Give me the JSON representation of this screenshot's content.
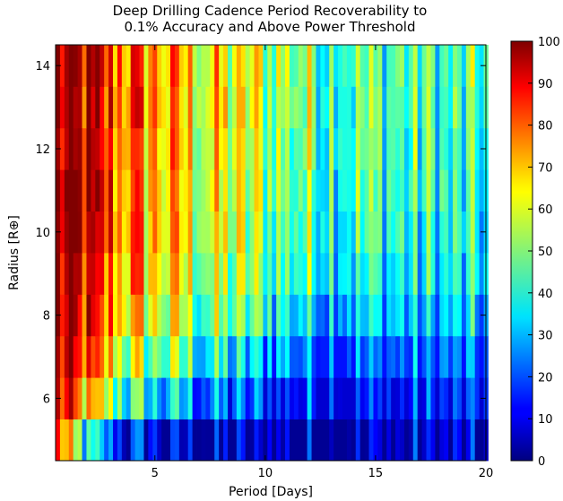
{
  "chart_data": {
    "type": "heatmap",
    "title_lines": [
      "Deep Drilling Cadence Period Recoverability to",
      "0.1% Accuracy and Above Power Threshold"
    ],
    "xlabel": "Period [Days]",
    "ylabel": "Radius [R⊕]",
    "xlim": [
      0.5,
      20
    ],
    "ylim": [
      4.5,
      14.5
    ],
    "x_ticks": [
      5,
      10,
      15,
      20
    ],
    "y_ticks": [
      6,
      8,
      10,
      12,
      14
    ],
    "colorbar": {
      "range": [
        0,
        100
      ],
      "ticks": [
        0,
        10,
        20,
        30,
        40,
        50,
        60,
        70,
        80,
        90,
        100
      ],
      "colormap": "jet"
    },
    "radius_bins": [
      5,
      6,
      7,
      8,
      9,
      10,
      11,
      12,
      13,
      14
    ],
    "period_bin_width": 0.2,
    "period_bins_start": 0.5,
    "row_trends": [
      {
        "radius": 5,
        "start": 85,
        "end": 4,
        "decay_days": 1.6,
        "floor": 2
      },
      {
        "radius": 6,
        "start": 92,
        "end": 12,
        "decay_days": 3.5,
        "floor": 8
      },
      {
        "radius": 7,
        "start": 95,
        "end": 18,
        "decay_days": 5.0,
        "floor": 14
      },
      {
        "radius": 8,
        "start": 96,
        "end": 24,
        "decay_days": 6.5,
        "floor": 18
      },
      {
        "radius": 9,
        "start": 96,
        "end": 28,
        "decay_days": 7.5,
        "floor": 22
      },
      {
        "radius": 10,
        "start": 97,
        "end": 30,
        "decay_days": 8.0,
        "floor": 24
      },
      {
        "radius": 11,
        "start": 97,
        "end": 32,
        "decay_days": 8.5,
        "floor": 25
      },
      {
        "radius": 12,
        "start": 97,
        "end": 33,
        "decay_days": 8.5,
        "floor": 26
      },
      {
        "radius": 13,
        "start": 97,
        "end": 33,
        "decay_days": 9.0,
        "floor": 26
      },
      {
        "radius": 14,
        "start": 97,
        "end": 34,
        "decay_days": 9.0,
        "floor": 27
      }
    ],
    "period_column_noise_amplitude": 18,
    "grid": false,
    "colorbar_position": "right"
  }
}
